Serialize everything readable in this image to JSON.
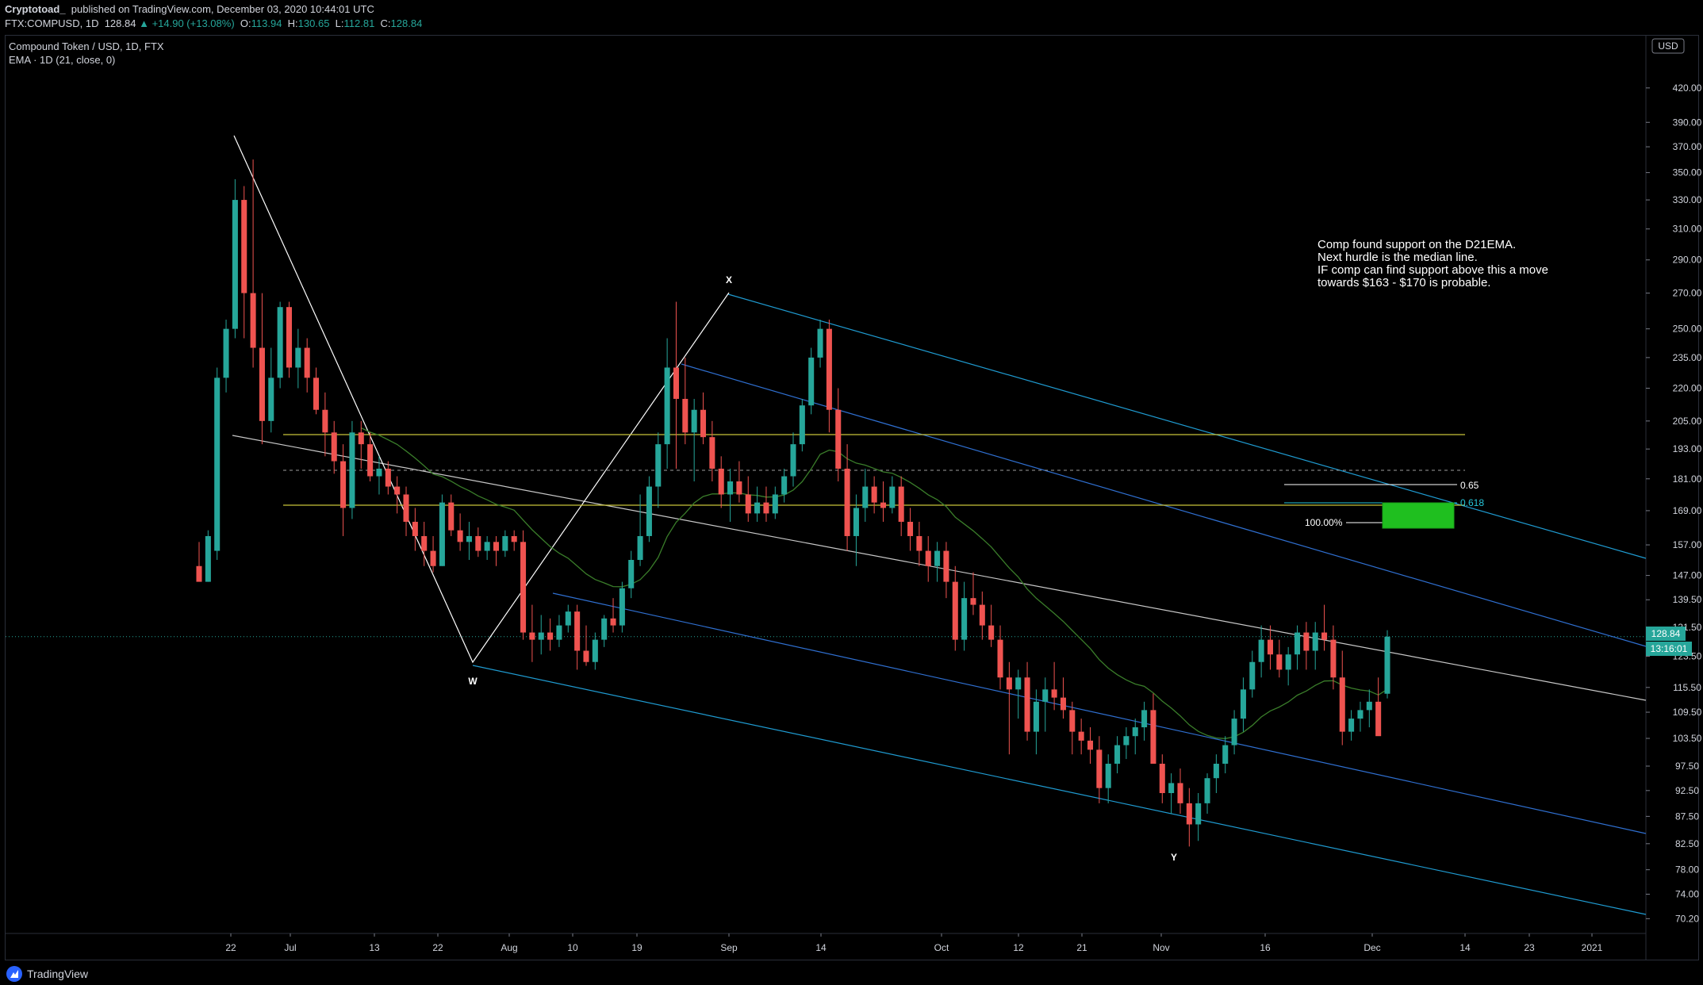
{
  "header": {
    "author": "Cryptotoad_",
    "published": "published on TradingView.com, December 03, 2020 10:44:01 UTC",
    "symbol": "FTX:COMPUSD, 1D",
    "last": "128.84",
    "change": "▲ +14.90 (+13.08%)",
    "o_label": "O:",
    "o_value": "113.94",
    "h_label": "H:",
    "h_value": "130.65",
    "l_label": "L:",
    "l_value": "112.81",
    "c_label": "C:",
    "c_value": "128.84"
  },
  "legend": {
    "title": "Compound Token / USD, 1D, FTX",
    "indicator": "EMA · 1D (21, close, 0)"
  },
  "currency_badge": "USD",
  "price_tag": "128.84",
  "countdown_tag": "13:16:01",
  "annotation": {
    "lines": [
      "Comp found support on the D21EMA.",
      "Next hurdle is the median line.",
      "IF comp can find support above this a move",
      "towards $163 -  $170 is probable."
    ]
  },
  "wave_labels": [
    "W",
    "X",
    "Y"
  ],
  "fib_labels": [
    "0.65",
    "0.618",
    "100.00%"
  ],
  "footer": {
    "brand": "TradingView"
  },
  "colors": {
    "up": "#26a69a",
    "down": "#ef5350",
    "ema": "#3a7d2a",
    "pitchfork_outer": "#1f9bd1",
    "pitchfork_inner": "#2f6fd0",
    "median": "#c8c8c8",
    "yellow": "#c8c23a",
    "target": "#1fbf1f"
  },
  "chart_data": {
    "type": "candlestick",
    "title": "Compound Token / USD, 1D, FTX",
    "y_axis": {
      "scale": "log",
      "ticks": [
        "420.00",
        "390.00",
        "370.00",
        "350.00",
        "330.00",
        "310.00",
        "290.00",
        "270.00",
        "250.00",
        "235.00",
        "220.00",
        "205.00",
        "193.00",
        "181.00",
        "169.00",
        "157.00",
        "147.00",
        "139.50",
        "131.50",
        "123.50",
        "115.50",
        "109.50",
        "103.50",
        "97.50",
        "92.50",
        "87.50",
        "82.50",
        "78.00",
        "74.00",
        "70.20"
      ],
      "range": [
        68,
        470
      ]
    },
    "x_axis": {
      "ticks": [
        "22",
        "Jul",
        "13",
        "22",
        "Aug",
        "10",
        "19",
        "Sep",
        "14",
        "Oct",
        "12",
        "21",
        "Nov",
        "16",
        "Dec",
        "14",
        "23",
        "2021"
      ]
    },
    "grid": false,
    "indicators": [
      "EMA 21"
    ],
    "last_price": 128.84,
    "candles": [
      {
        "o": 150,
        "h": 158,
        "l": 146,
        "c": 145
      },
      {
        "o": 145,
        "h": 162,
        "l": 145,
        "c": 160
      },
      {
        "o": 155,
        "h": 230,
        "l": 152,
        "c": 225
      },
      {
        "o": 225,
        "h": 255,
        "l": 218,
        "c": 250
      },
      {
        "o": 250,
        "h": 345,
        "l": 245,
        "c": 330
      },
      {
        "o": 330,
        "h": 340,
        "l": 245,
        "c": 270
      },
      {
        "o": 270,
        "h": 360,
        "l": 230,
        "c": 240
      },
      {
        "o": 240,
        "h": 270,
        "l": 195,
        "c": 205
      },
      {
        "o": 205,
        "h": 240,
        "l": 200,
        "c": 225
      },
      {
        "o": 225,
        "h": 265,
        "l": 220,
        "c": 262
      },
      {
        "o": 262,
        "h": 265,
        "l": 225,
        "c": 230
      },
      {
        "o": 230,
        "h": 250,
        "l": 220,
        "c": 240
      },
      {
        "o": 240,
        "h": 245,
        "l": 218,
        "c": 225
      },
      {
        "o": 225,
        "h": 230,
        "l": 208,
        "c": 210
      },
      {
        "o": 210,
        "h": 218,
        "l": 190,
        "c": 200
      },
      {
        "o": 200,
        "h": 205,
        "l": 183,
        "c": 188
      },
      {
        "o": 188,
        "h": 195,
        "l": 160,
        "c": 170
      },
      {
        "o": 170,
        "h": 205,
        "l": 166,
        "c": 200
      },
      {
        "o": 200,
        "h": 205,
        "l": 185,
        "c": 195
      },
      {
        "o": 195,
        "h": 200,
        "l": 180,
        "c": 182
      },
      {
        "o": 182,
        "h": 190,
        "l": 175,
        "c": 185
      },
      {
        "o": 185,
        "h": 188,
        "l": 175,
        "c": 178
      },
      {
        "o": 178,
        "h": 182,
        "l": 168,
        "c": 175
      },
      {
        "o": 175,
        "h": 178,
        "l": 160,
        "c": 165
      },
      {
        "o": 165,
        "h": 170,
        "l": 155,
        "c": 160
      },
      {
        "o": 160,
        "h": 165,
        "l": 150,
        "c": 155
      },
      {
        "o": 155,
        "h": 160,
        "l": 148,
        "c": 150
      },
      {
        "o": 150,
        "h": 175,
        "l": 150,
        "c": 172
      },
      {
        "o": 172,
        "h": 175,
        "l": 160,
        "c": 162
      },
      {
        "o": 162,
        "h": 168,
        "l": 155,
        "c": 158
      },
      {
        "o": 158,
        "h": 165,
        "l": 152,
        "c": 160
      },
      {
        "o": 160,
        "h": 163,
        "l": 153,
        "c": 155
      },
      {
        "o": 155,
        "h": 160,
        "l": 152,
        "c": 158
      },
      {
        "o": 158,
        "h": 160,
        "l": 150,
        "c": 155
      },
      {
        "o": 155,
        "h": 162,
        "l": 153,
        "c": 160
      },
      {
        "o": 160,
        "h": 162,
        "l": 155,
        "c": 158
      },
      {
        "o": 158,
        "h": 162,
        "l": 128,
        "c": 130
      },
      {
        "o": 130,
        "h": 138,
        "l": 122,
        "c": 128
      },
      {
        "o": 128,
        "h": 135,
        "l": 124,
        "c": 130
      },
      {
        "o": 130,
        "h": 134,
        "l": 125,
        "c": 128
      },
      {
        "o": 128,
        "h": 135,
        "l": 126,
        "c": 132
      },
      {
        "o": 132,
        "h": 138,
        "l": 130,
        "c": 136
      },
      {
        "o": 136,
        "h": 138,
        "l": 120,
        "c": 125
      },
      {
        "o": 125,
        "h": 132,
        "l": 121,
        "c": 122
      },
      {
        "o": 122,
        "h": 130,
        "l": 120,
        "c": 128
      },
      {
        "o": 128,
        "h": 135,
        "l": 126,
        "c": 134
      },
      {
        "o": 134,
        "h": 140,
        "l": 130,
        "c": 132
      },
      {
        "o": 132,
        "h": 145,
        "l": 130,
        "c": 143
      },
      {
        "o": 143,
        "h": 155,
        "l": 140,
        "c": 152
      },
      {
        "o": 152,
        "h": 175,
        "l": 150,
        "c": 160
      },
      {
        "o": 160,
        "h": 182,
        "l": 158,
        "c": 178
      },
      {
        "o": 178,
        "h": 200,
        "l": 170,
        "c": 195
      },
      {
        "o": 195,
        "h": 245,
        "l": 185,
        "c": 230
      },
      {
        "o": 230,
        "h": 265,
        "l": 185,
        "c": 215
      },
      {
        "o": 215,
        "h": 235,
        "l": 195,
        "c": 200
      },
      {
        "o": 200,
        "h": 215,
        "l": 180,
        "c": 210
      },
      {
        "o": 210,
        "h": 218,
        "l": 195,
        "c": 198
      },
      {
        "o": 198,
        "h": 205,
        "l": 180,
        "c": 185
      },
      {
        "o": 185,
        "h": 190,
        "l": 170,
        "c": 175
      },
      {
        "o": 175,
        "h": 185,
        "l": 165,
        "c": 180
      },
      {
        "o": 180,
        "h": 188,
        "l": 172,
        "c": 175
      },
      {
        "o": 175,
        "h": 182,
        "l": 165,
        "c": 168
      },
      {
        "o": 168,
        "h": 178,
        "l": 165,
        "c": 172
      },
      {
        "o": 172,
        "h": 178,
        "l": 165,
        "c": 168
      },
      {
        "o": 168,
        "h": 178,
        "l": 166,
        "c": 175
      },
      {
        "o": 175,
        "h": 185,
        "l": 172,
        "c": 182
      },
      {
        "o": 182,
        "h": 200,
        "l": 178,
        "c": 195
      },
      {
        "o": 195,
        "h": 215,
        "l": 192,
        "c": 212
      },
      {
        "o": 212,
        "h": 240,
        "l": 208,
        "c": 235
      },
      {
        "o": 235,
        "h": 255,
        "l": 230,
        "c": 250
      },
      {
        "o": 250,
        "h": 255,
        "l": 200,
        "c": 210
      },
      {
        "o": 210,
        "h": 220,
        "l": 180,
        "c": 185
      },
      {
        "o": 185,
        "h": 195,
        "l": 155,
        "c": 160
      },
      {
        "o": 160,
        "h": 175,
        "l": 150,
        "c": 170
      },
      {
        "o": 170,
        "h": 185,
        "l": 165,
        "c": 178
      },
      {
        "o": 178,
        "h": 182,
        "l": 168,
        "c": 172
      },
      {
        "o": 172,
        "h": 180,
        "l": 165,
        "c": 170
      },
      {
        "o": 170,
        "h": 182,
        "l": 168,
        "c": 178
      },
      {
        "o": 178,
        "h": 182,
        "l": 160,
        "c": 165
      },
      {
        "o": 165,
        "h": 170,
        "l": 155,
        "c": 160
      },
      {
        "o": 160,
        "h": 165,
        "l": 150,
        "c": 155
      },
      {
        "o": 155,
        "h": 160,
        "l": 145,
        "c": 150
      },
      {
        "o": 150,
        "h": 158,
        "l": 145,
        "c": 155
      },
      {
        "o": 155,
        "h": 158,
        "l": 140,
        "c": 145
      },
      {
        "o": 145,
        "h": 150,
        "l": 125,
        "c": 128
      },
      {
        "o": 128,
        "h": 145,
        "l": 125,
        "c": 140
      },
      {
        "o": 140,
        "h": 148,
        "l": 135,
        "c": 138
      },
      {
        "o": 138,
        "h": 142,
        "l": 128,
        "c": 132
      },
      {
        "o": 132,
        "h": 138,
        "l": 126,
        "c": 128
      },
      {
        "o": 128,
        "h": 132,
        "l": 115,
        "c": 118
      },
      {
        "o": 118,
        "h": 122,
        "l": 100,
        "c": 115
      },
      {
        "o": 115,
        "h": 120,
        "l": 108,
        "c": 118
      },
      {
        "o": 118,
        "h": 122,
        "l": 103,
        "c": 105
      },
      {
        "o": 105,
        "h": 115,
        "l": 100,
        "c": 112
      },
      {
        "o": 112,
        "h": 118,
        "l": 105,
        "c": 115
      },
      {
        "o": 115,
        "h": 122,
        "l": 110,
        "c": 113
      },
      {
        "o": 113,
        "h": 118,
        "l": 108,
        "c": 110
      },
      {
        "o": 110,
        "h": 112,
        "l": 100,
        "c": 105
      },
      {
        "o": 105,
        "h": 108,
        "l": 100,
        "c": 103
      },
      {
        "o": 103,
        "h": 106,
        "l": 98,
        "c": 101
      },
      {
        "o": 101,
        "h": 104,
        "l": 90,
        "c": 93
      },
      {
        "o": 93,
        "h": 100,
        "l": 90,
        "c": 98
      },
      {
        "o": 98,
        "h": 104,
        "l": 96,
        "c": 102
      },
      {
        "o": 102,
        "h": 106,
        "l": 99,
        "c": 104
      },
      {
        "o": 104,
        "h": 108,
        "l": 100,
        "c": 106
      },
      {
        "o": 106,
        "h": 112,
        "l": 103,
        "c": 110
      },
      {
        "o": 110,
        "h": 114,
        "l": 100,
        "c": 98
      },
      {
        "o": 98,
        "h": 100,
        "l": 90,
        "c": 92
      },
      {
        "o": 92,
        "h": 96,
        "l": 88,
        "c": 94
      },
      {
        "o": 94,
        "h": 97,
        "l": 88,
        "c": 90
      },
      {
        "o": 90,
        "h": 93,
        "l": 82,
        "c": 86
      },
      {
        "o": 86,
        "h": 92,
        "l": 83,
        "c": 90
      },
      {
        "o": 90,
        "h": 96,
        "l": 88,
        "c": 95
      },
      {
        "o": 95,
        "h": 100,
        "l": 92,
        "c": 98
      },
      {
        "o": 98,
        "h": 104,
        "l": 96,
        "c": 102
      },
      {
        "o": 102,
        "h": 110,
        "l": 100,
        "c": 108
      },
      {
        "o": 108,
        "h": 118,
        "l": 105,
        "c": 115
      },
      {
        "o": 115,
        "h": 125,
        "l": 113,
        "c": 122
      },
      {
        "o": 122,
        "h": 132,
        "l": 118,
        "c": 128
      },
      {
        "o": 128,
        "h": 132,
        "l": 120,
        "c": 124
      },
      {
        "o": 124,
        "h": 128,
        "l": 118,
        "c": 120
      },
      {
        "o": 120,
        "h": 126,
        "l": 116,
        "c": 124
      },
      {
        "o": 124,
        "h": 132,
        "l": 120,
        "c": 130
      },
      {
        "o": 130,
        "h": 133,
        "l": 120,
        "c": 125
      },
      {
        "o": 125,
        "h": 133,
        "l": 120,
        "c": 130
      },
      {
        "o": 130,
        "h": 138,
        "l": 125,
        "c": 128
      },
      {
        "o": 128,
        "h": 132,
        "l": 115,
        "c": 118
      },
      {
        "o": 118,
        "h": 125,
        "l": 102,
        "c": 105
      },
      {
        "o": 105,
        "h": 110,
        "l": 103,
        "c": 108
      },
      {
        "o": 108,
        "h": 112,
        "l": 105,
        "c": 110
      },
      {
        "o": 110,
        "h": 115,
        "l": 106,
        "c": 112
      },
      {
        "o": 112,
        "h": 118,
        "l": 106,
        "c": 104
      },
      {
        "o": 113.94,
        "h": 130.65,
        "l": 112.81,
        "c": 128.84
      }
    ]
  }
}
